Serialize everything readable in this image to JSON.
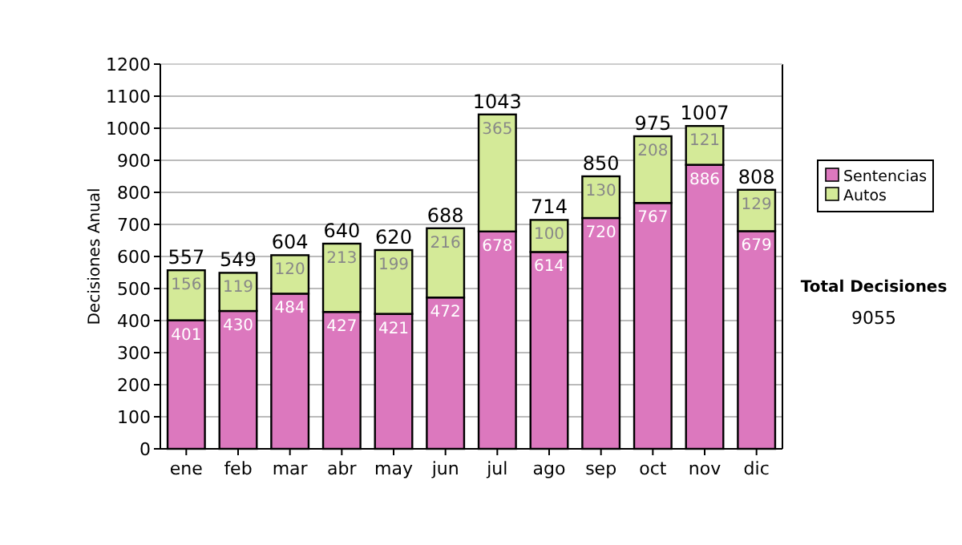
{
  "chart_data": {
    "type": "bar",
    "ylabel": "Decisiones Anual",
    "categories": [
      "ene",
      "feb",
      "mar",
      "abr",
      "may",
      "jun",
      "jul",
      "ago",
      "sep",
      "oct",
      "nov",
      "dic"
    ],
    "series": [
      {
        "name": "Sentencias",
        "color": "#dc78be",
        "values": [
          401,
          430,
          484,
          427,
          421,
          472,
          678,
          614,
          720,
          767,
          886,
          679
        ]
      },
      {
        "name": "Autos",
        "color": "#d4ea98",
        "values": [
          156,
          119,
          120,
          213,
          199,
          216,
          365,
          100,
          130,
          208,
          121,
          129
        ]
      }
    ],
    "stacked": true,
    "data_labels": true,
    "totals": [
      "557",
      "549",
      "604",
      "640",
      "620",
      "688",
      "1043",
      "714",
      "850",
      "975",
      "1007",
      "808"
    ],
    "ylim": [
      0,
      1200
    ],
    "yticks": [
      0,
      100,
      200,
      300,
      400,
      500,
      600,
      700,
      800,
      900,
      1000,
      1100,
      1200
    ],
    "grid": "y",
    "legend": "right",
    "annotations": [
      "Total Decisiones",
      "9055"
    ]
  }
}
